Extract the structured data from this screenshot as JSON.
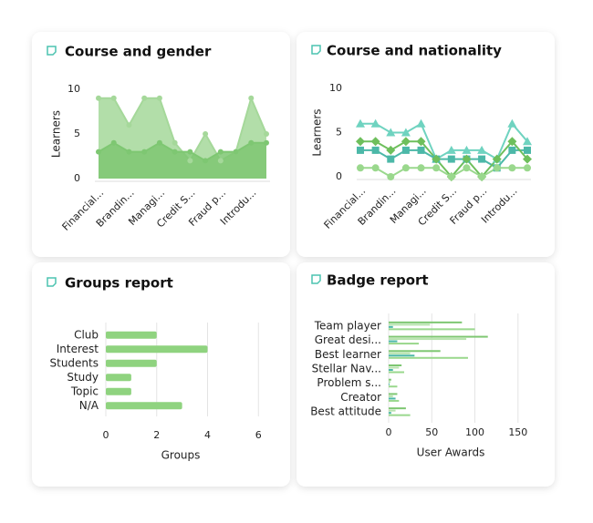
{
  "chart_data": [
    {
      "type": "area",
      "title": "Course and gender",
      "ylabel": "Learners",
      "categories": [
        "Financial...",
        null,
        "Brandin...",
        null,
        "Managi...",
        null,
        "Credit S...",
        null,
        "Fraud p...",
        null,
        "Introdu...",
        null
      ],
      "series": [
        {
          "color": "#a5d89a",
          "values": [
            9,
            9,
            6,
            9,
            9,
            4,
            2,
            5,
            2,
            3,
            9,
            5
          ]
        },
        {
          "color": "#7ec772",
          "values": [
            3,
            4,
            3,
            3,
            4,
            3,
            3,
            2,
            3,
            3,
            4,
            4
          ]
        }
      ],
      "ylim": [
        0,
        10
      ],
      "yticks": [
        0,
        5,
        10
      ]
    },
    {
      "type": "line",
      "title": "Course and nationality",
      "ylabel": "Learners",
      "categories": [
        "Financial...",
        null,
        "Brandin...",
        null,
        "Managi...",
        null,
        "Credit S...",
        null,
        "Fraud p...",
        null,
        "Introdu...",
        null
      ],
      "series": [
        {
          "color": "#6fd3c0",
          "marker": "triangle",
          "values": [
            6,
            6,
            5,
            5,
            6,
            2,
            3,
            3,
            3,
            2,
            6,
            4
          ]
        },
        {
          "color": "#4cb8a8",
          "marker": "square",
          "values": [
            3,
            3,
            2,
            3,
            3,
            2,
            2,
            2,
            2,
            1,
            3,
            3
          ]
        },
        {
          "color": "#6ebf5c",
          "marker": "diamond",
          "values": [
            4,
            4,
            3,
            4,
            4,
            2,
            0,
            2,
            0,
            2,
            4,
            2
          ]
        },
        {
          "color": "#9ad88d",
          "marker": "circle",
          "values": [
            1,
            1,
            0,
            1,
            1,
            1,
            0,
            1,
            0,
            1,
            1,
            1
          ]
        }
      ],
      "ylim": [
        0,
        10
      ],
      "yticks": [
        0,
        5,
        10
      ]
    },
    {
      "type": "hbar",
      "title": "Groups report",
      "xlabel": "Groups",
      "categories": [
        "Club",
        "Interest",
        "Students",
        "Study",
        "Topic",
        "N/A"
      ],
      "values": [
        2,
        4,
        2,
        1,
        1,
        3
      ],
      "color": "#8fd37f",
      "xlim": [
        0,
        6.6
      ],
      "xticks": [
        0,
        2,
        4,
        6
      ],
      "grid": true
    },
    {
      "type": "grouped-hbar",
      "title": "Badge report",
      "xlabel": "User Awards",
      "categories": [
        "Team player",
        "Great desi...",
        "Best learner",
        "Stellar Nav...",
        "Problem s...",
        "Creator",
        "Best attitude"
      ],
      "series": [
        {
          "color": "#7ec772",
          "values": [
            85,
            115,
            60,
            15,
            3,
            10,
            20
          ]
        },
        {
          "color": "#b7e3ad",
          "values": [
            48,
            90,
            25,
            12,
            2,
            5,
            8
          ]
        },
        {
          "color": "#4cb8a8",
          "values": [
            5,
            10,
            30,
            5,
            1,
            8,
            3
          ]
        },
        {
          "color": "#9ad88d",
          "values": [
            100,
            35,
            92,
            18,
            10,
            12,
            25
          ]
        }
      ],
      "xlim": [
        0,
        165
      ],
      "xticks": [
        0,
        50,
        100,
        150
      ],
      "grid": true
    }
  ]
}
